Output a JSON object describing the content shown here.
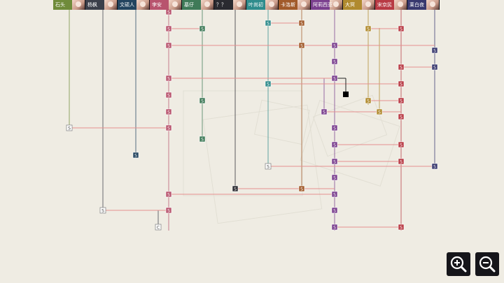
{
  "header": {
    "characters": [
      {
        "name": "石头",
        "color": "#6f8b3a"
      },
      {
        "name": "杨枫",
        "color": "#3b3f4a"
      },
      {
        "name": "文硕人",
        "color": "#23445f"
      },
      {
        "name": "李安",
        "color": "#b8546e"
      },
      {
        "name": "墓仔",
        "color": "#3f7a58"
      },
      {
        "name": "？？",
        "color": "#2a2a30"
      },
      {
        "name": "叶尚初",
        "color": "#2f8c8c"
      },
      {
        "name": "卡洛斯",
        "color": "#a15a2a"
      },
      {
        "name": "阿莉西亚",
        "color": "#7a3f8e"
      },
      {
        "name": "大冥",
        "color": "#b08a2e"
      },
      {
        "name": "宋京民",
        "color": "#b83a44"
      },
      {
        "name": "莱白夜",
        "color": "#38386e"
      }
    ]
  },
  "node_glyphs": {
    "story": "S",
    "choice": "C"
  },
  "colors": {
    "background": "#efece3",
    "connector": "#e58f8f",
    "white_node_border": "#8a8a8a",
    "current_node": "#000000"
  },
  "zoom": {
    "zoom_in_icon": "magnifier-plus-icon",
    "zoom_out_icon": "magnifier-minus-icon"
  }
}
